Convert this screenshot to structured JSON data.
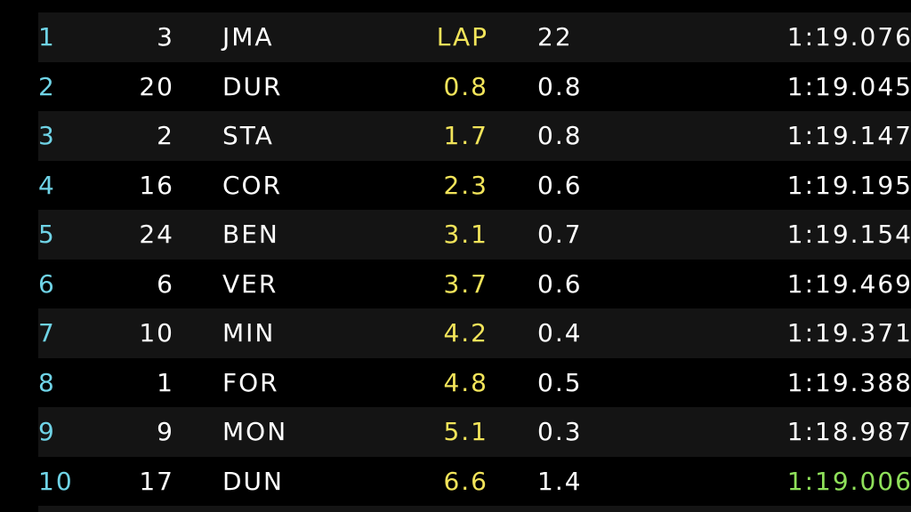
{
  "leaderboard": {
    "rows": [
      {
        "position": "1",
        "car_number": "3",
        "driver": "JMA",
        "gap": "LAP",
        "interval": "22",
        "last_lap": "1:19.076"
      },
      {
        "position": "2",
        "car_number": "20",
        "driver": "DUR",
        "gap": "0.8",
        "interval": "0.8",
        "last_lap": "1:19.045"
      },
      {
        "position": "3",
        "car_number": "2",
        "driver": "STA",
        "gap": "1.7",
        "interval": "0.8",
        "last_lap": "1:19.147"
      },
      {
        "position": "4",
        "car_number": "16",
        "driver": "COR",
        "gap": "2.3",
        "interval": "0.6",
        "last_lap": "1:19.195"
      },
      {
        "position": "5",
        "car_number": "24",
        "driver": "BEN",
        "gap": "3.1",
        "interval": "0.7",
        "last_lap": "1:19.154"
      },
      {
        "position": "6",
        "car_number": "6",
        "driver": "VER",
        "gap": "3.7",
        "interval": "0.6",
        "last_lap": "1:19.469"
      },
      {
        "position": "7",
        "car_number": "10",
        "driver": "MIN",
        "gap": "4.2",
        "interval": "0.4",
        "last_lap": "1:19.371"
      },
      {
        "position": "8",
        "car_number": "1",
        "driver": "FOR",
        "gap": "4.8",
        "interval": "0.5",
        "last_lap": "1:19.388"
      },
      {
        "position": "9",
        "car_number": "9",
        "driver": "MON",
        "gap": "5.1",
        "interval": "0.3",
        "last_lap": "1:18.987"
      },
      {
        "position": "10",
        "car_number": "17",
        "driver": "DUN",
        "gap": "6.6",
        "interval": "1.4",
        "last_lap": "1:19.006"
      }
    ]
  },
  "colors": {
    "position": "#6fd3e6",
    "gap": "#f2e45a",
    "best_lap": "#8fe05a",
    "text": "#ffffff",
    "row_shade": "#141414",
    "background": "#000000"
  }
}
